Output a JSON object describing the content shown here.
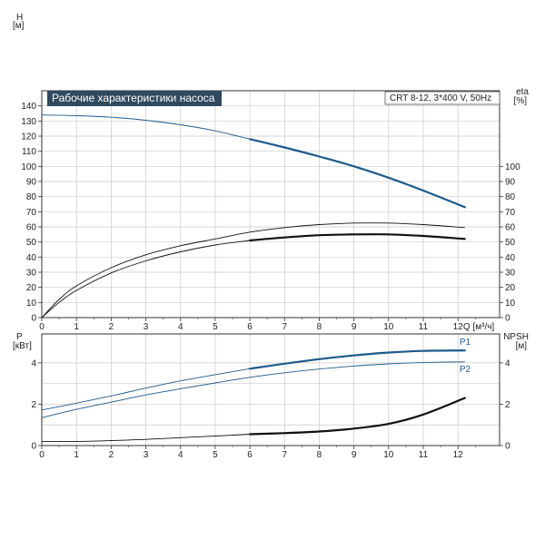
{
  "header": {
    "title": "Рабочие характеристики насоса",
    "pump_info": "CRT 8-12, 3*400 V, 50Hz"
  },
  "colors": {
    "blue": "#1f5a8b",
    "black": "#111111"
  },
  "chart_data": [
    {
      "type": "line",
      "title": "Рабочие характеристики насоса",
      "left_axis": {
        "label_line1": "H",
        "label_line2": "[м]",
        "range": [
          0,
          150
        ],
        "ticks": [
          0,
          10,
          20,
          30,
          40,
          50,
          60,
          70,
          80,
          90,
          100,
          110,
          120,
          130,
          140
        ]
      },
      "right_axis": {
        "label_line1": "eta",
        "label_line2": "[%]",
        "range": [
          0,
          150
        ],
        "ticks": [
          0,
          10,
          20,
          30,
          40,
          50,
          60,
          70,
          80,
          90,
          100
        ]
      },
      "x_axis": {
        "label": "Q [м³/ч]",
        "range": [
          0,
          13.2
        ],
        "ticks": [
          0,
          1,
          2,
          3,
          4,
          5,
          6,
          7,
          8,
          9,
          10,
          11,
          12
        ]
      },
      "grid": true,
      "series": [
        {
          "axis": "left",
          "color": "blue",
          "thin": [
            [
              0,
              134
            ],
            [
              1,
              133.5
            ],
            [
              2,
              132.5
            ],
            [
              3,
              130.5
            ],
            [
              4,
              127.5
            ],
            [
              5,
              123.5
            ],
            [
              6,
              118
            ]
          ],
          "bold": [
            [
              6,
              118
            ],
            [
              7,
              112.5
            ],
            [
              8,
              106.5
            ],
            [
              9,
              100
            ],
            [
              10,
              92.5
            ],
            [
              11,
              84
            ],
            [
              12.2,
              73
            ]
          ]
        },
        {
          "axis": "right",
          "color": "black",
          "thin": [
            [
              0,
              0
            ],
            [
              0.5,
              10
            ],
            [
              1,
              18
            ],
            [
              2,
              29.5
            ],
            [
              3,
              37.5
            ],
            [
              4,
              43.5
            ],
            [
              5,
              48
            ],
            [
              6,
              51
            ]
          ],
          "bold": [
            [
              6,
              51
            ],
            [
              7,
              53
            ],
            [
              8,
              54.5
            ],
            [
              9,
              55
            ],
            [
              10,
              55
            ],
            [
              11,
              54
            ],
            [
              12.2,
              52
            ]
          ]
        },
        {
          "axis": "right",
          "color": "black",
          "thin": [
            [
              0,
              0
            ],
            [
              0.5,
              12
            ],
            [
              1,
              21
            ],
            [
              2,
              33
            ],
            [
              3,
              41.5
            ],
            [
              4,
              47.5
            ],
            [
              5,
              52
            ],
            [
              6,
              56.5
            ],
            [
              7,
              59.5
            ],
            [
              8,
              61.5
            ],
            [
              9,
              62.5
            ],
            [
              10,
              62.5
            ],
            [
              11,
              61.5
            ],
            [
              12.2,
              59.5
            ]
          ],
          "bold": []
        }
      ]
    },
    {
      "type": "line",
      "left_axis": {
        "label_line1": "P",
        "label_line2": "[кВт]",
        "range": [
          0,
          5.4
        ],
        "ticks": [
          0,
          2,
          4
        ]
      },
      "right_axis": {
        "label_line1": "NPSH",
        "label_line2": "[м]",
        "range": [
          0,
          5.4
        ],
        "ticks": [
          0,
          2,
          4
        ]
      },
      "x_axis": {
        "range": [
          0,
          13.2
        ],
        "ticks": [
          0,
          1,
          2,
          3,
          4,
          5,
          6,
          7,
          8,
          9,
          10,
          11,
          12
        ]
      },
      "grid": true,
      "series": [
        {
          "name": "P1",
          "color": "blue",
          "thin": [
            [
              0,
              1.72
            ],
            [
              1,
              2.05
            ],
            [
              2,
              2.4
            ],
            [
              3,
              2.78
            ],
            [
              4,
              3.13
            ],
            [
              5,
              3.43
            ],
            [
              6,
              3.72
            ]
          ],
          "bold": [
            [
              6,
              3.72
            ],
            [
              7,
              3.96
            ],
            [
              8,
              4.18
            ],
            [
              9,
              4.36
            ],
            [
              10,
              4.5
            ],
            [
              11,
              4.58
            ],
            [
              12.2,
              4.6
            ]
          ]
        },
        {
          "name": "P2",
          "color": "blue",
          "thin": [
            [
              0,
              1.35
            ],
            [
              1,
              1.75
            ],
            [
              2,
              2.1
            ],
            [
              3,
              2.45
            ],
            [
              4,
              2.75
            ],
            [
              5,
              3.03
            ],
            [
              6,
              3.3
            ],
            [
              7,
              3.52
            ],
            [
              8,
              3.7
            ],
            [
              9,
              3.85
            ],
            [
              10,
              3.95
            ],
            [
              11,
              4.02
            ],
            [
              12.2,
              4.05
            ]
          ],
          "bold": []
        },
        {
          "color": "black",
          "thin": [
            [
              0,
              0.2
            ],
            [
              1,
              0.2
            ],
            [
              2,
              0.24
            ],
            [
              3,
              0.3
            ],
            [
              4,
              0.38
            ],
            [
              5,
              0.46
            ],
            [
              6,
              0.55
            ]
          ],
          "bold": [
            [
              6,
              0.55
            ],
            [
              7,
              0.6
            ],
            [
              8,
              0.68
            ],
            [
              9,
              0.82
            ],
            [
              10,
              1.05
            ],
            [
              11,
              1.5
            ],
            [
              12.2,
              2.3
            ]
          ]
        }
      ]
    }
  ]
}
